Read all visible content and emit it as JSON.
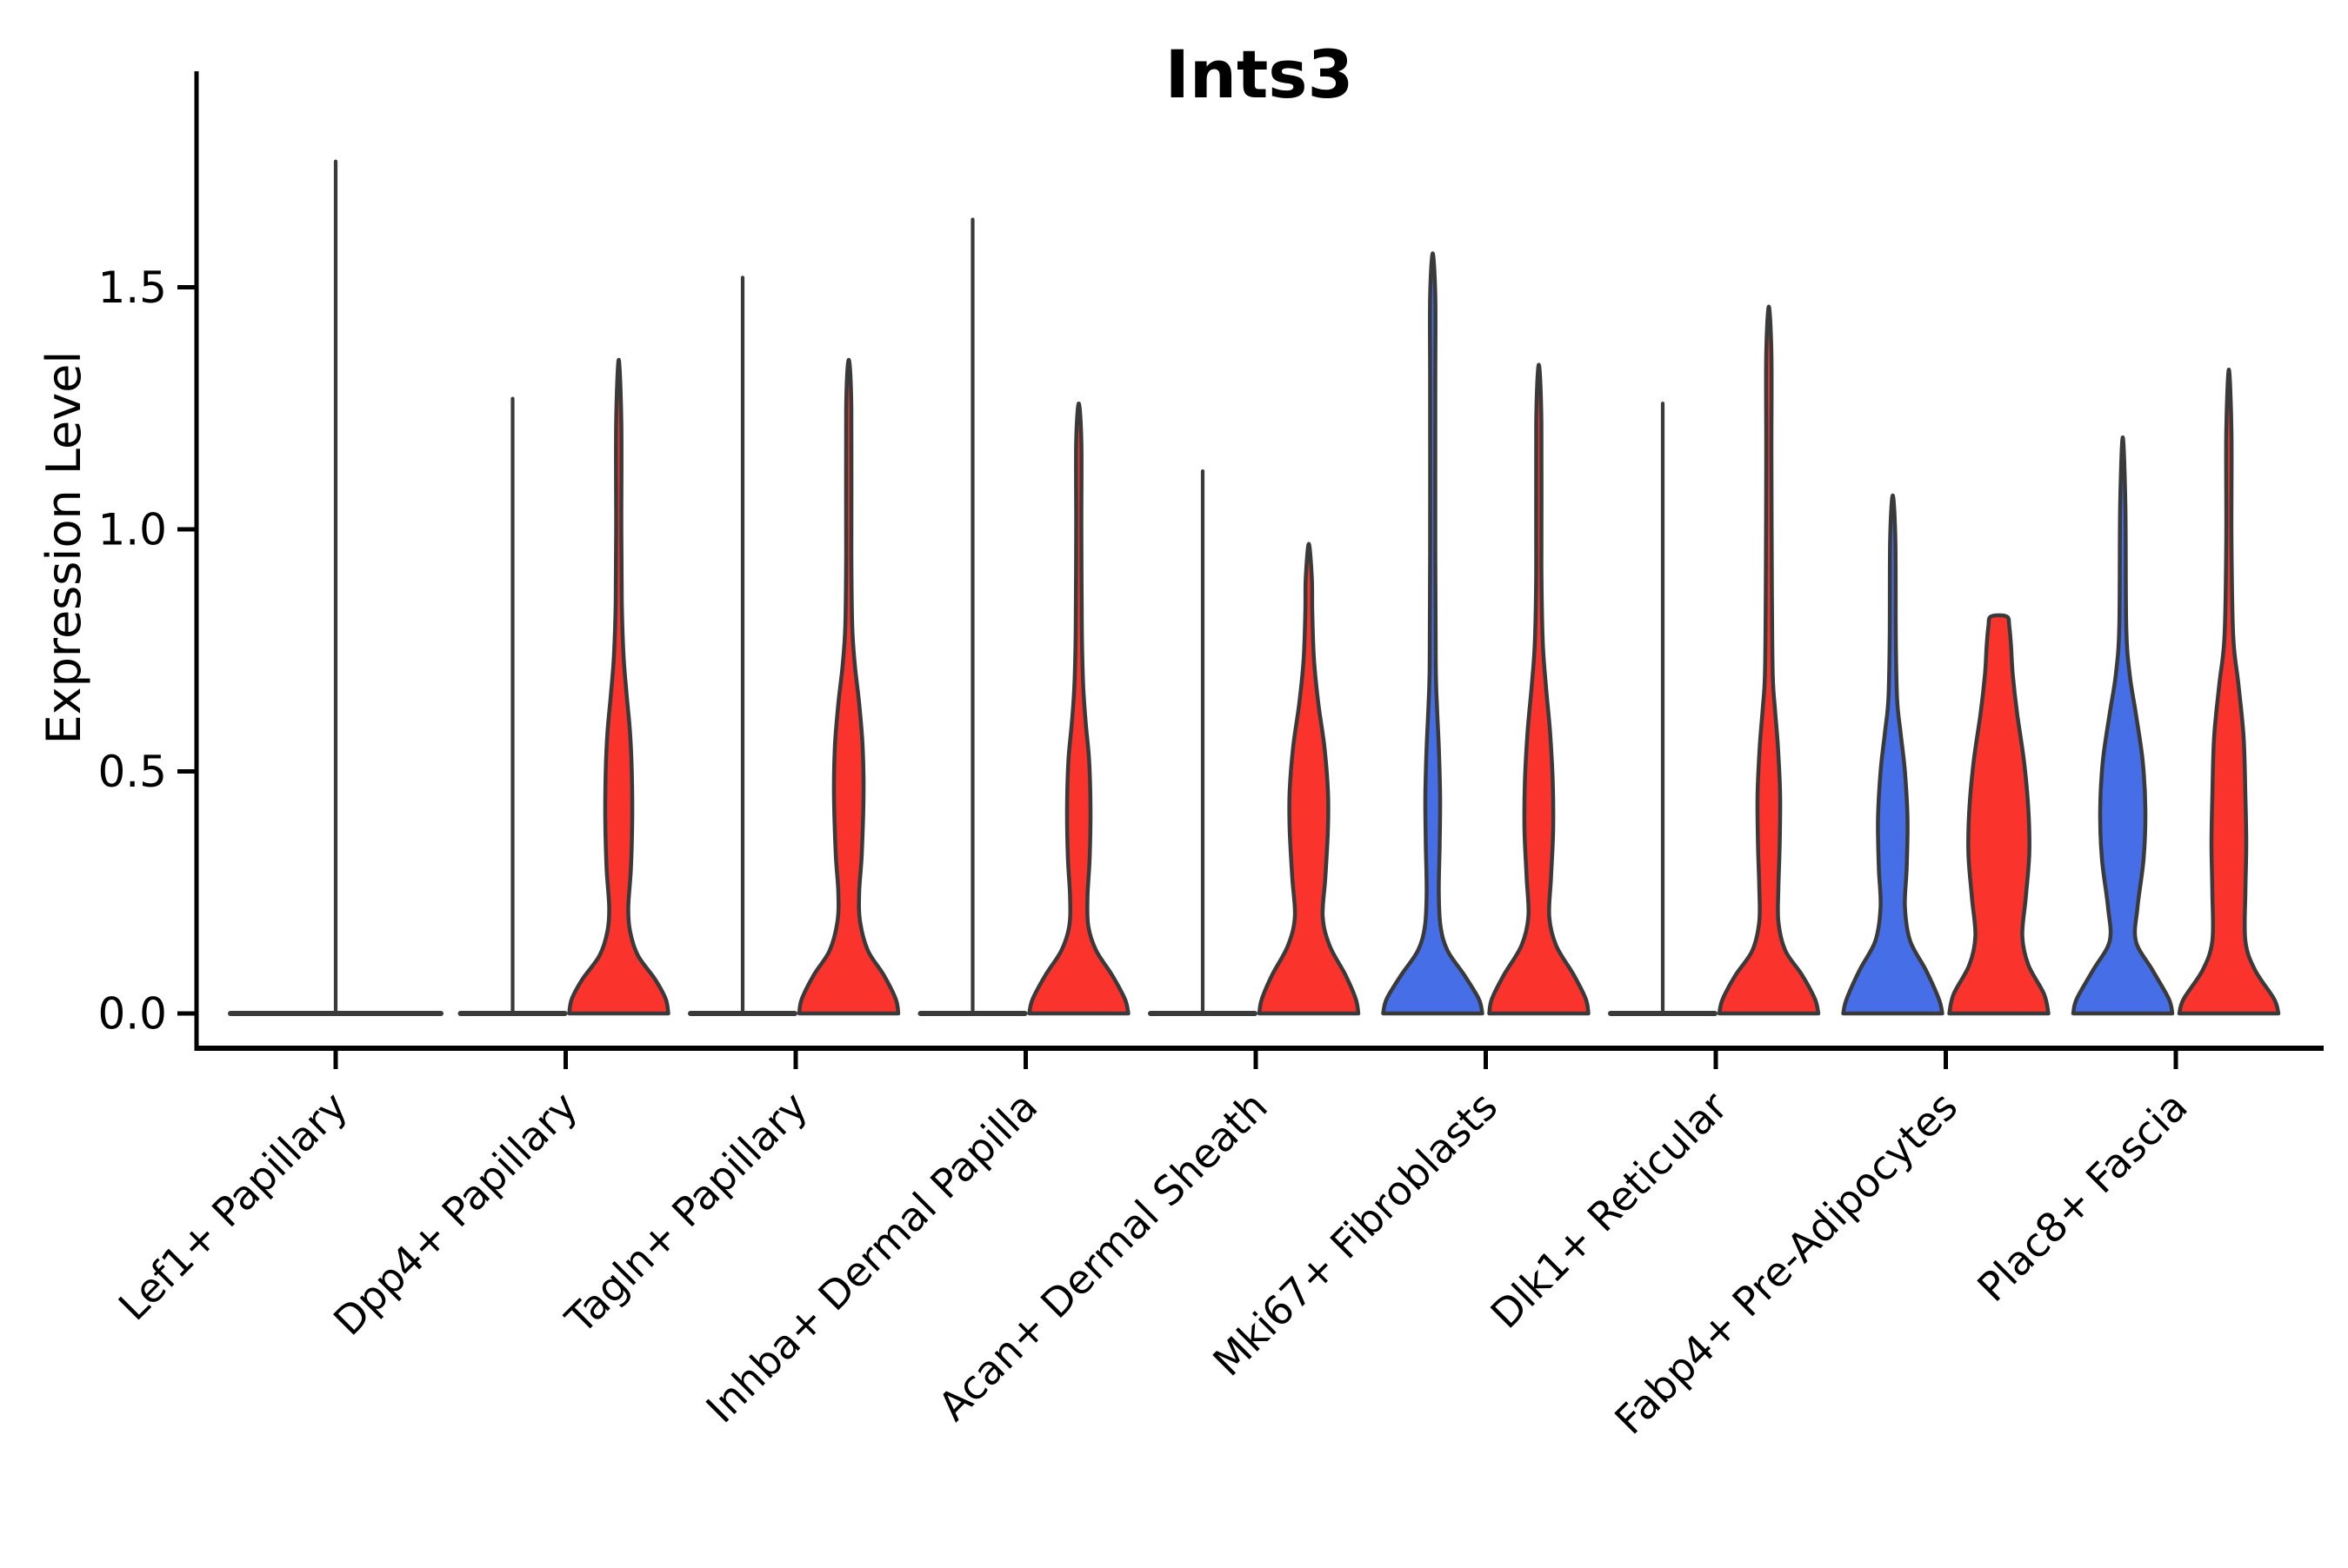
{
  "chart_data": {
    "type": "violin",
    "title": "Ints3",
    "ylabel": "Expression Level",
    "xlabel": "",
    "grid": false,
    "legend": "none",
    "ylim": [
      -0.07,
      1.95
    ],
    "yticks": {
      "values": [
        0.0,
        0.5,
        1.0,
        1.5
      ],
      "labels": [
        "0.0",
        "0.5",
        "1.0",
        "1.5"
      ]
    },
    "palette": {
      "condition_blue": "#466ee6",
      "condition_red": "#fa332d",
      "violin_outline": "#3a3a3a",
      "axis_color": "#000000"
    },
    "categories": [
      "Lef1+ Papillary",
      "Dpp4+ Papillary",
      "Tagln+ Papillary",
      "Inhba+ Dermal Papilla",
      "Acan+ Dermal Sheath",
      "Mki67+ Fibroblasts",
      "Dlk1+ Reticular",
      "Fabp4+ Pre-Adipocytes",
      "Plac8+ Fascia"
    ],
    "violins": [
      {
        "category": 0,
        "condition": "single",
        "color": "condition_red",
        "shape": "flat",
        "max": 1.76,
        "base_halfwidth": 121
      },
      {
        "category": 1,
        "condition": "blue",
        "color": "condition_blue",
        "shape": "flat",
        "max": 1.27,
        "base_halfwidth": 60
      },
      {
        "category": 1,
        "condition": "red",
        "color": "condition_red",
        "shape": "density",
        "max": 1.35,
        "blunt": false,
        "profile": [
          [
            0,
            57
          ],
          [
            0.03,
            54
          ],
          [
            0.07,
            42
          ],
          [
            0.12,
            22
          ],
          [
            0.17,
            13
          ],
          [
            0.22,
            11
          ],
          [
            0.3,
            14
          ],
          [
            0.4,
            15.5
          ],
          [
            0.5,
            15
          ],
          [
            0.58,
            13
          ],
          [
            0.66,
            9
          ],
          [
            0.74,
            5.5
          ],
          [
            0.85,
            3.5
          ],
          [
            1.0,
            3
          ],
          [
            1.22,
            3
          ]
        ]
      },
      {
        "category": 2,
        "condition": "blue",
        "color": "condition_blue",
        "shape": "flat",
        "max": 1.52,
        "base_halfwidth": 60
      },
      {
        "category": 2,
        "condition": "red",
        "color": "condition_red",
        "shape": "density",
        "max": 1.35,
        "blunt": false,
        "profile": [
          [
            0,
            57
          ],
          [
            0.03,
            54
          ],
          [
            0.08,
            40
          ],
          [
            0.13,
            22
          ],
          [
            0.19,
            13
          ],
          [
            0.25,
            12
          ],
          [
            0.33,
            15
          ],
          [
            0.45,
            17
          ],
          [
            0.55,
            16
          ],
          [
            0.64,
            12
          ],
          [
            0.72,
            7
          ],
          [
            0.8,
            4
          ],
          [
            0.95,
            3
          ],
          [
            1.25,
            3
          ]
        ]
      },
      {
        "category": 3,
        "condition": "blue",
        "color": "condition_blue",
        "shape": "flat",
        "max": 1.64,
        "base_halfwidth": 60
      },
      {
        "category": 3,
        "condition": "red",
        "color": "condition_red",
        "shape": "density",
        "max": 1.26,
        "blunt": false,
        "profile": [
          [
            0,
            57
          ],
          [
            0.03,
            53
          ],
          [
            0.08,
            38
          ],
          [
            0.13,
            20
          ],
          [
            0.18,
            11
          ],
          [
            0.24,
            10
          ],
          [
            0.32,
            12.5
          ],
          [
            0.42,
            13.5
          ],
          [
            0.52,
            12
          ],
          [
            0.6,
            8
          ],
          [
            0.68,
            5
          ],
          [
            0.8,
            3.5
          ],
          [
            1.0,
            3
          ],
          [
            1.18,
            3
          ]
        ]
      },
      {
        "category": 4,
        "condition": "blue",
        "color": "condition_blue",
        "shape": "flat",
        "max": 1.12,
        "base_halfwidth": 60
      },
      {
        "category": 4,
        "condition": "red",
        "color": "condition_red",
        "shape": "density",
        "max": 0.97,
        "blunt": false,
        "profile": [
          [
            0,
            57
          ],
          [
            0.03,
            54
          ],
          [
            0.08,
            42
          ],
          [
            0.14,
            24
          ],
          [
            0.2,
            16
          ],
          [
            0.28,
            19
          ],
          [
            0.38,
            22
          ],
          [
            0.46,
            22
          ],
          [
            0.55,
            18
          ],
          [
            0.64,
            11
          ],
          [
            0.73,
            6
          ],
          [
            0.83,
            4
          ],
          [
            0.9,
            3.5
          ]
        ]
      },
      {
        "category": 5,
        "condition": "blue",
        "color": "condition_blue",
        "shape": "density",
        "max": 1.57,
        "blunt": false,
        "profile": [
          [
            0,
            57
          ],
          [
            0.03,
            53
          ],
          [
            0.08,
            36
          ],
          [
            0.13,
            17
          ],
          [
            0.18,
            9
          ],
          [
            0.25,
            7
          ],
          [
            0.35,
            8
          ],
          [
            0.45,
            8.5
          ],
          [
            0.55,
            7
          ],
          [
            0.63,
            5
          ],
          [
            0.72,
            3.5
          ],
          [
            0.95,
            3
          ],
          [
            1.3,
            3
          ],
          [
            1.48,
            3
          ]
        ]
      },
      {
        "category": 5,
        "condition": "red",
        "color": "condition_red",
        "shape": "density",
        "max": 1.34,
        "blunt": false,
        "profile": [
          [
            0,
            57
          ],
          [
            0.03,
            54
          ],
          [
            0.08,
            40
          ],
          [
            0.14,
            20
          ],
          [
            0.2,
            12
          ],
          [
            0.28,
            14
          ],
          [
            0.38,
            16.5
          ],
          [
            0.48,
            16
          ],
          [
            0.58,
            13
          ],
          [
            0.68,
            8
          ],
          [
            0.77,
            4.5
          ],
          [
            0.92,
            3
          ],
          [
            1.22,
            3
          ]
        ]
      },
      {
        "category": 6,
        "condition": "blue",
        "color": "condition_blue",
        "shape": "flat",
        "max": 1.26,
        "base_halfwidth": 60
      },
      {
        "category": 6,
        "condition": "red",
        "color": "condition_red",
        "shape": "density",
        "max": 1.46,
        "blunt": false,
        "profile": [
          [
            0,
            57
          ],
          [
            0.03,
            53
          ],
          [
            0.08,
            38
          ],
          [
            0.13,
            19
          ],
          [
            0.19,
            11
          ],
          [
            0.26,
            11
          ],
          [
            0.35,
            12.5
          ],
          [
            0.45,
            13
          ],
          [
            0.55,
            10.5
          ],
          [
            0.63,
            7
          ],
          [
            0.7,
            4.5
          ],
          [
            0.88,
            3.5
          ],
          [
            1.15,
            3
          ],
          [
            1.36,
            3
          ]
        ]
      },
      {
        "category": 7,
        "condition": "blue",
        "color": "condition_blue",
        "shape": "density",
        "max": 1.07,
        "blunt": false,
        "profile": [
          [
            0,
            57
          ],
          [
            0.03,
            53
          ],
          [
            0.09,
            38
          ],
          [
            0.15,
            20
          ],
          [
            0.22,
            14
          ],
          [
            0.3,
            16
          ],
          [
            0.4,
            17
          ],
          [
            0.5,
            14
          ],
          [
            0.58,
            9
          ],
          [
            0.65,
            5
          ],
          [
            0.78,
            3.5
          ],
          [
            0.98,
            3
          ]
        ]
      },
      {
        "category": 7,
        "condition": "red",
        "color": "condition_red",
        "shape": "density",
        "max": 0.82,
        "blunt": true,
        "profile": [
          [
            0,
            57
          ],
          [
            0.04,
            52
          ],
          [
            0.1,
            34
          ],
          [
            0.16,
            27
          ],
          [
            0.24,
            31
          ],
          [
            0.33,
            35
          ],
          [
            0.42,
            34
          ],
          [
            0.52,
            29
          ],
          [
            0.62,
            21
          ],
          [
            0.7,
            16
          ],
          [
            0.76,
            14
          ],
          [
            0.8,
            12
          ],
          [
            0.82,
            9
          ]
        ]
      },
      {
        "category": 8,
        "condition": "blue",
        "color": "condition_blue",
        "shape": "density",
        "max": 1.19,
        "blunt": false,
        "profile": [
          [
            0,
            57
          ],
          [
            0.03,
            53
          ],
          [
            0.09,
            34
          ],
          [
            0.15,
            15
          ],
          [
            0.22,
            17
          ],
          [
            0.32,
            24
          ],
          [
            0.42,
            26
          ],
          [
            0.52,
            23
          ],
          [
            0.62,
            15
          ],
          [
            0.7,
            8
          ],
          [
            0.8,
            4
          ],
          [
            1.05,
            3
          ]
        ]
      },
      {
        "category": 8,
        "condition": "red",
        "color": "condition_red",
        "shape": "density",
        "max": 1.33,
        "blunt": false,
        "profile": [
          [
            0,
            57
          ],
          [
            0.03,
            52
          ],
          [
            0.09,
            30
          ],
          [
            0.15,
            19
          ],
          [
            0.25,
            19
          ],
          [
            0.35,
            20
          ],
          [
            0.45,
            19
          ],
          [
            0.57,
            17
          ],
          [
            0.68,
            11
          ],
          [
            0.78,
            5
          ],
          [
            0.98,
            3
          ],
          [
            1.2,
            3
          ]
        ]
      }
    ]
  }
}
